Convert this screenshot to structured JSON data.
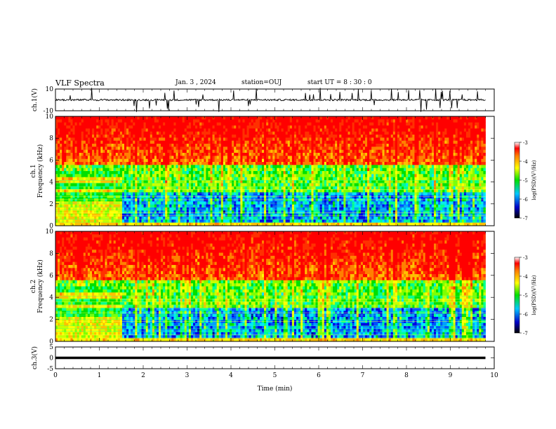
{
  "header": {
    "title": "VLF Spectra",
    "date": "Jan. 3 , 2024",
    "station": "station=OUJ",
    "start": "start UT = 8 : 30 : 0"
  },
  "chart_data": [
    {
      "type": "line",
      "panel": "ch1-waveform",
      "ylabel": "ch.1(V)",
      "ylim": [
        -10,
        10
      ],
      "yticks": [
        "10",
        "-10"
      ],
      "xlim": [
        0,
        10
      ],
      "baseline": 0,
      "note_visible": "dense noisy waveform with frequent spikes"
    },
    {
      "type": "heatmap",
      "panel": "ch1-spectrogram",
      "ylabel": "ch.1\nFrequency (kHz)",
      "ylim": [
        0,
        10
      ],
      "yticks": [
        "0",
        "2",
        "4",
        "6",
        "8",
        "10"
      ],
      "xlim": [
        0,
        10
      ],
      "data_end_min": 9.8,
      "colorbar": {
        "label": "log(PSD)(V²/Hz)",
        "range": [
          -7,
          -3
        ],
        "ticks": [
          "-3",
          "-4",
          "-5",
          "-6",
          "-7"
        ]
      }
    },
    {
      "type": "heatmap",
      "panel": "ch2-spectrogram",
      "ylabel": "ch.2\nFrequency (kHz)",
      "ylim": [
        0,
        10
      ],
      "yticks": [
        "0",
        "2",
        "4",
        "6",
        "8",
        "10"
      ],
      "xlim": [
        0,
        10
      ],
      "data_end_min": 9.8,
      "colorbar": {
        "label": "log(PSD)(V²/Hz)",
        "range": [
          -7,
          -3
        ],
        "ticks": [
          "-3",
          "-4",
          "-5",
          "-6",
          "-7"
        ]
      }
    },
    {
      "type": "line",
      "panel": "ch3-waveform",
      "ylabel": "ch.3(V)",
      "ylim": [
        -5,
        5
      ],
      "yticks": [
        "5",
        "0",
        "-5"
      ],
      "xlim": [
        0,
        10
      ],
      "baseline": 0,
      "xlabel": "Time (min)",
      "xticks": [
        "0",
        "1",
        "2",
        "3",
        "4",
        "5",
        "6",
        "7",
        "8",
        "9",
        "10"
      ]
    }
  ]
}
